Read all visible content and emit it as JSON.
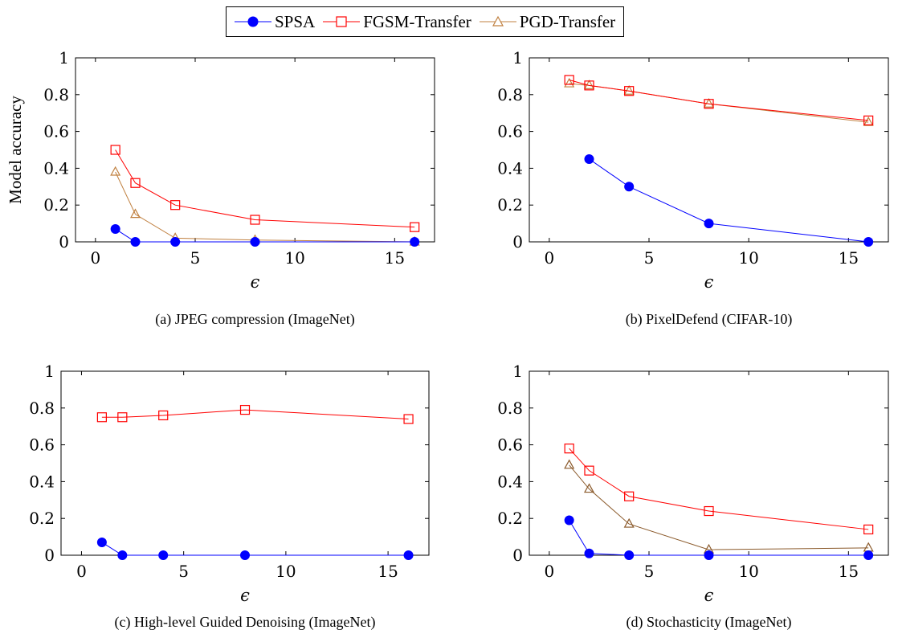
{
  "legend": [
    {
      "name": "SPSA",
      "color": "#0000ff",
      "marker": "circle"
    },
    {
      "name": "FGSM-Transfer",
      "color": "#ff0000",
      "marker": "square"
    },
    {
      "name": "PGD-Transfer",
      "color": "#c08040",
      "marker": "triangle"
    }
  ],
  "chart_data": [
    {
      "type": "line",
      "caption": "(a) JPEG compression (ImageNet)",
      "xlabel": "ϵ",
      "ylabel": "Model accuracy",
      "xlim": [
        -1,
        17
      ],
      "ylim": [
        0,
        1
      ],
      "xticks": [
        0,
        5,
        10,
        15
      ],
      "yticks": [
        0,
        0.2,
        0.4,
        0.6,
        0.8,
        1
      ],
      "ytick_labels": [
        "0",
        "0.2",
        "0.4",
        "0.6",
        "0.8",
        "1"
      ],
      "series": [
        {
          "name": "SPSA",
          "x": [
            1,
            2,
            4,
            8,
            16
          ],
          "y": [
            0.07,
            0,
            0,
            0,
            0
          ],
          "color": "#0000ff",
          "marker": "circle"
        },
        {
          "name": "FGSM-Transfer",
          "x": [
            1,
            2,
            4,
            8,
            16
          ],
          "y": [
            0.5,
            0.32,
            0.2,
            0.12,
            0.08
          ],
          "color": "#ff0000",
          "marker": "square"
        },
        {
          "name": "PGD-Transfer",
          "x": [
            1,
            2,
            4,
            8,
            16
          ],
          "y": [
            0.38,
            0.15,
            0.02,
            0.01,
            0
          ],
          "color": "#c08040",
          "marker": "triangle"
        }
      ]
    },
    {
      "type": "line",
      "caption": "(b) PixelDefend (CIFAR-10)",
      "xlabel": "ϵ",
      "ylabel": "",
      "xlim": [
        -1,
        17
      ],
      "ylim": [
        0,
        1
      ],
      "xticks": [
        0,
        5,
        10,
        15
      ],
      "yticks": [
        0,
        0.2,
        0.4,
        0.6,
        0.8,
        1
      ],
      "ytick_labels": [
        "0",
        "0.2",
        "0.4",
        "0.6",
        "0.8",
        "1"
      ],
      "series": [
        {
          "name": "SPSA",
          "x": [
            2,
            4,
            8,
            16
          ],
          "y": [
            0.45,
            0.3,
            0.1,
            0
          ],
          "color": "#0000ff",
          "marker": "circle"
        },
        {
          "name": "FGSM-Transfer",
          "x": [
            1,
            2,
            4,
            8,
            16
          ],
          "y": [
            0.88,
            0.85,
            0.82,
            0.75,
            0.66
          ],
          "color": "#ff0000",
          "marker": "square"
        },
        {
          "name": "PGD-Transfer",
          "x": [
            1,
            2,
            4,
            8,
            16
          ],
          "y": [
            0.86,
            0.85,
            0.82,
            0.75,
            0.65
          ],
          "color": "#c08040",
          "marker": "triangle"
        }
      ]
    },
    {
      "type": "line",
      "caption": "(c) High-level Guided Denoising (ImageNet)",
      "xlabel": "ϵ",
      "ylabel": "",
      "xlim": [
        -1,
        17
      ],
      "ylim": [
        0,
        1
      ],
      "xticks": [
        0,
        5,
        10,
        15
      ],
      "yticks": [
        0,
        0.2,
        0.4,
        0.6,
        0.8,
        1
      ],
      "ytick_labels": [
        "0",
        "0.2",
        "0.4",
        "0.6",
        "0.8",
        "1"
      ],
      "series": [
        {
          "name": "SPSA",
          "x": [
            1,
            2,
            4,
            8,
            16
          ],
          "y": [
            0.07,
            0,
            0,
            0,
            0
          ],
          "color": "#0000ff",
          "marker": "circle"
        },
        {
          "name": "FGSM-Transfer",
          "x": [
            1,
            2,
            4,
            8,
            16
          ],
          "y": [
            0.75,
            0.75,
            0.76,
            0.79,
            0.74
          ],
          "color": "#ff0000",
          "marker": "square"
        }
      ]
    },
    {
      "type": "line",
      "caption": "(d) Stochasticity (ImageNet)",
      "xlabel": "ϵ",
      "ylabel": "",
      "xlim": [
        -1,
        17
      ],
      "ylim": [
        0,
        1
      ],
      "xticks": [
        0,
        5,
        10,
        15
      ],
      "yticks": [
        0,
        0.2,
        0.4,
        0.6,
        0.8,
        1
      ],
      "ytick_labels": [
        "0",
        "0.2",
        "0.4",
        "0.6",
        "0.8",
        "1"
      ],
      "series": [
        {
          "name": "SPSA",
          "x": [
            1,
            2,
            4,
            8,
            16
          ],
          "y": [
            0.19,
            0.01,
            0,
            0,
            0
          ],
          "color": "#0000ff",
          "marker": "circle"
        },
        {
          "name": "FGSM-Transfer",
          "x": [
            1,
            2,
            4,
            8,
            16
          ],
          "y": [
            0.58,
            0.46,
            0.32,
            0.24,
            0.14
          ],
          "color": "#ff0000",
          "marker": "square"
        },
        {
          "name": "PGD-Transfer",
          "x": [
            1,
            2,
            4,
            8,
            16
          ],
          "y": [
            0.49,
            0.36,
            0.17,
            0.03,
            0.04
          ],
          "color": "#8b5a2b",
          "marker": "triangle"
        }
      ]
    }
  ]
}
